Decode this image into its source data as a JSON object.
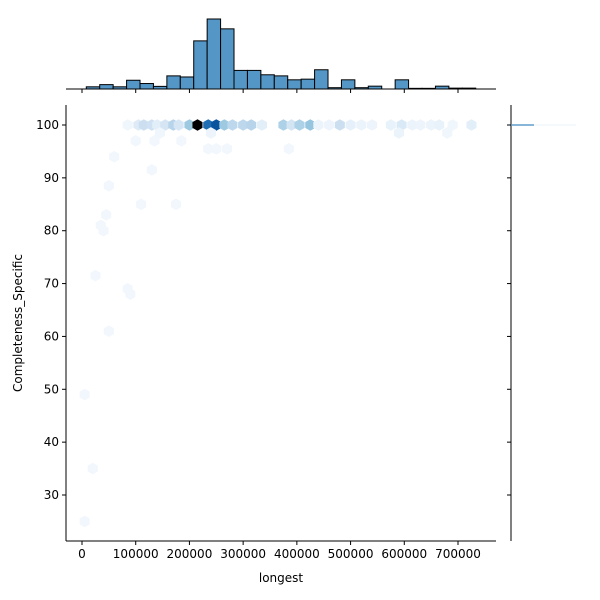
{
  "chart_data": {
    "type": "hexbin-joint",
    "title": "",
    "xlabel": "longest",
    "ylabel": "Completeness_Specific",
    "xlim": [
      -20000,
      770000
    ],
    "ylim": [
      21.5,
      104
    ],
    "xticks": [
      0,
      100000,
      200000,
      300000,
      400000,
      500000,
      600000,
      700000
    ],
    "xtick_labels": [
      "0",
      "100000",
      "200000",
      "300000",
      "400000",
      "500000",
      "600000",
      "700000"
    ],
    "yticks": [
      30,
      40,
      50,
      60,
      70,
      80,
      90,
      100
    ],
    "ytick_labels": [
      "30",
      "40",
      "50",
      "60",
      "70",
      "80",
      "90",
      "100"
    ],
    "grid": false,
    "colormap": "Blues",
    "hexbins": [
      {
        "x": 85000,
        "y": 100,
        "density": 0.04
      },
      {
        "x": 105000,
        "y": 100,
        "density": 0.12
      },
      {
        "x": 115000,
        "y": 100,
        "density": 0.22
      },
      {
        "x": 130000,
        "y": 100,
        "density": 0.2
      },
      {
        "x": 140000,
        "y": 100,
        "density": 0.1
      },
      {
        "x": 155000,
        "y": 100,
        "density": 0.17
      },
      {
        "x": 170000,
        "y": 100,
        "density": 0.3
      },
      {
        "x": 180000,
        "y": 100,
        "density": 0.16
      },
      {
        "x": 200000,
        "y": 100,
        "density": 0.38
      },
      {
        "x": 215000,
        "y": 100,
        "density": 1.0
      },
      {
        "x": 235000,
        "y": 100,
        "density": 0.75
      },
      {
        "x": 250000,
        "y": 100,
        "density": 0.85
      },
      {
        "x": 265000,
        "y": 100,
        "density": 0.38
      },
      {
        "x": 280000,
        "y": 100,
        "density": 0.28
      },
      {
        "x": 300000,
        "y": 100,
        "density": 0.28
      },
      {
        "x": 315000,
        "y": 100,
        "density": 0.3
      },
      {
        "x": 335000,
        "y": 100,
        "density": 0.1
      },
      {
        "x": 375000,
        "y": 100,
        "density": 0.33
      },
      {
        "x": 390000,
        "y": 100,
        "density": 0.18
      },
      {
        "x": 405000,
        "y": 100,
        "density": 0.33
      },
      {
        "x": 425000,
        "y": 100,
        "density": 0.4
      },
      {
        "x": 440000,
        "y": 100,
        "density": 0.06
      },
      {
        "x": 460000,
        "y": 100,
        "density": 0.05
      },
      {
        "x": 480000,
        "y": 100,
        "density": 0.22
      },
      {
        "x": 500000,
        "y": 100,
        "density": 0.08
      },
      {
        "x": 520000,
        "y": 100,
        "density": 0.06
      },
      {
        "x": 540000,
        "y": 100,
        "density": 0.05
      },
      {
        "x": 575000,
        "y": 100,
        "density": 0.07
      },
      {
        "x": 595000,
        "y": 100,
        "density": 0.14
      },
      {
        "x": 615000,
        "y": 100,
        "density": 0.06
      },
      {
        "x": 630000,
        "y": 100,
        "density": 0.05
      },
      {
        "x": 650000,
        "y": 100,
        "density": 0.06
      },
      {
        "x": 665000,
        "y": 100,
        "density": 0.07
      },
      {
        "x": 690000,
        "y": 100,
        "density": 0.04
      },
      {
        "x": 725000,
        "y": 100,
        "density": 0.1
      },
      {
        "x": 145000,
        "y": 98.5,
        "density": 0.04
      },
      {
        "x": 240000,
        "y": 98.5,
        "density": 0.05
      },
      {
        "x": 590000,
        "y": 98.5,
        "density": 0.06
      },
      {
        "x": 680000,
        "y": 98.5,
        "density": 0.04
      },
      {
        "x": 100000,
        "y": 97,
        "density": 0.03
      },
      {
        "x": 135000,
        "y": 97,
        "density": 0.03
      },
      {
        "x": 185000,
        "y": 97,
        "density": 0.03
      },
      {
        "x": 235000,
        "y": 95.5,
        "density": 0.03
      },
      {
        "x": 270000,
        "y": 95.5,
        "density": 0.03
      },
      {
        "x": 250000,
        "y": 95.5,
        "density": 0.03
      },
      {
        "x": 385000,
        "y": 95.5,
        "density": 0.03
      },
      {
        "x": 60000,
        "y": 94,
        "density": 0.03
      },
      {
        "x": 130000,
        "y": 91.5,
        "density": 0.03
      },
      {
        "x": 50000,
        "y": 88.5,
        "density": 0.03
      },
      {
        "x": 110000,
        "y": 85,
        "density": 0.03
      },
      {
        "x": 175000,
        "y": 85,
        "density": 0.03
      },
      {
        "x": 45000,
        "y": 83,
        "density": 0.03
      },
      {
        "x": 35000,
        "y": 81,
        "density": 0.03
      },
      {
        "x": 40000,
        "y": 80,
        "density": 0.03
      },
      {
        "x": 25000,
        "y": 71.5,
        "density": 0.03
      },
      {
        "x": 85000,
        "y": 69,
        "density": 0.03
      },
      {
        "x": 90000,
        "y": 68,
        "density": 0.03
      },
      {
        "x": 50000,
        "y": 61,
        "density": 0.03
      },
      {
        "x": 5000,
        "y": 49,
        "density": 0.03
      },
      {
        "x": 20000,
        "y": 35,
        "density": 0.03
      },
      {
        "x": 5000,
        "y": 25,
        "density": 0.03
      }
    ],
    "marginal_x": {
      "type": "histogram",
      "color": "#5497c7",
      "bin_edges": [
        8000,
        33000,
        58000,
        83000,
        108000,
        133000,
        158000,
        183000,
        208000,
        233000,
        258000,
        283000,
        308000,
        333000,
        358000,
        383000,
        408000,
        433000,
        458000,
        483000,
        508000,
        533000,
        558000,
        583000,
        608000,
        633000,
        658000,
        683000,
        708000,
        733000
      ],
      "counts": [
        1,
        2,
        1,
        4,
        2.5,
        1.2,
        6,
        5.5,
        22,
        32,
        27.5,
        8.5,
        8.5,
        6.5,
        6,
        4.2,
        4.5,
        8.8,
        0.6,
        4.2,
        0.6,
        1.3,
        0,
        4.2,
        0.3,
        0.3,
        1.3,
        0.4,
        0.4
      ]
    },
    "marginal_y": {
      "type": "histogram",
      "color": "#5497c7",
      "note": "nearly all mass in the top bin at y≈100",
      "bins": [
        {
          "y": 100,
          "relative_height": 1.0
        }
      ]
    }
  }
}
